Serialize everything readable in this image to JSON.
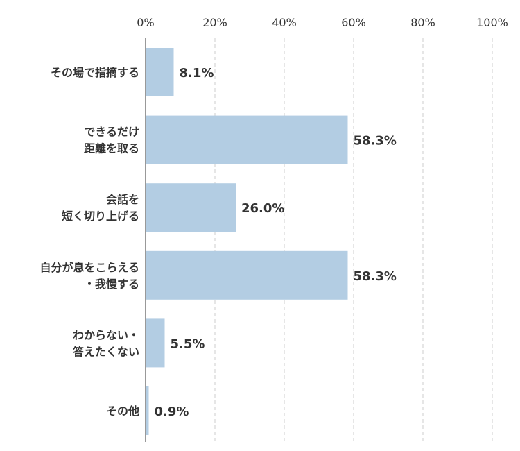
{
  "chart_data": {
    "type": "bar",
    "orientation": "horizontal",
    "categories": [
      [
        "その場で指摘する"
      ],
      [
        "できるだけ",
        "距離を取る"
      ],
      [
        "会話を",
        "短く切り上げる"
      ],
      [
        "自分が息をこらえる",
        "・我慢する"
      ],
      [
        "わからない・",
        "答えたくない"
      ],
      [
        "その他"
      ]
    ],
    "values": [
      8.1,
      58.3,
      26.0,
      58.3,
      5.5,
      0.9
    ],
    "value_labels": [
      "8.1%",
      "58.3%",
      "26.0%",
      "58.3%",
      "5.5%",
      "0.9%"
    ],
    "xlim": [
      0,
      100
    ],
    "x_ticks": [
      0,
      20,
      40,
      60,
      80,
      100
    ],
    "x_tick_labels": [
      "0%",
      "20%",
      "40%",
      "60%",
      "80%",
      "100%"
    ],
    "bar_color": "#b3cde3",
    "grid": true,
    "title": "",
    "xlabel": "",
    "ylabel": ""
  }
}
